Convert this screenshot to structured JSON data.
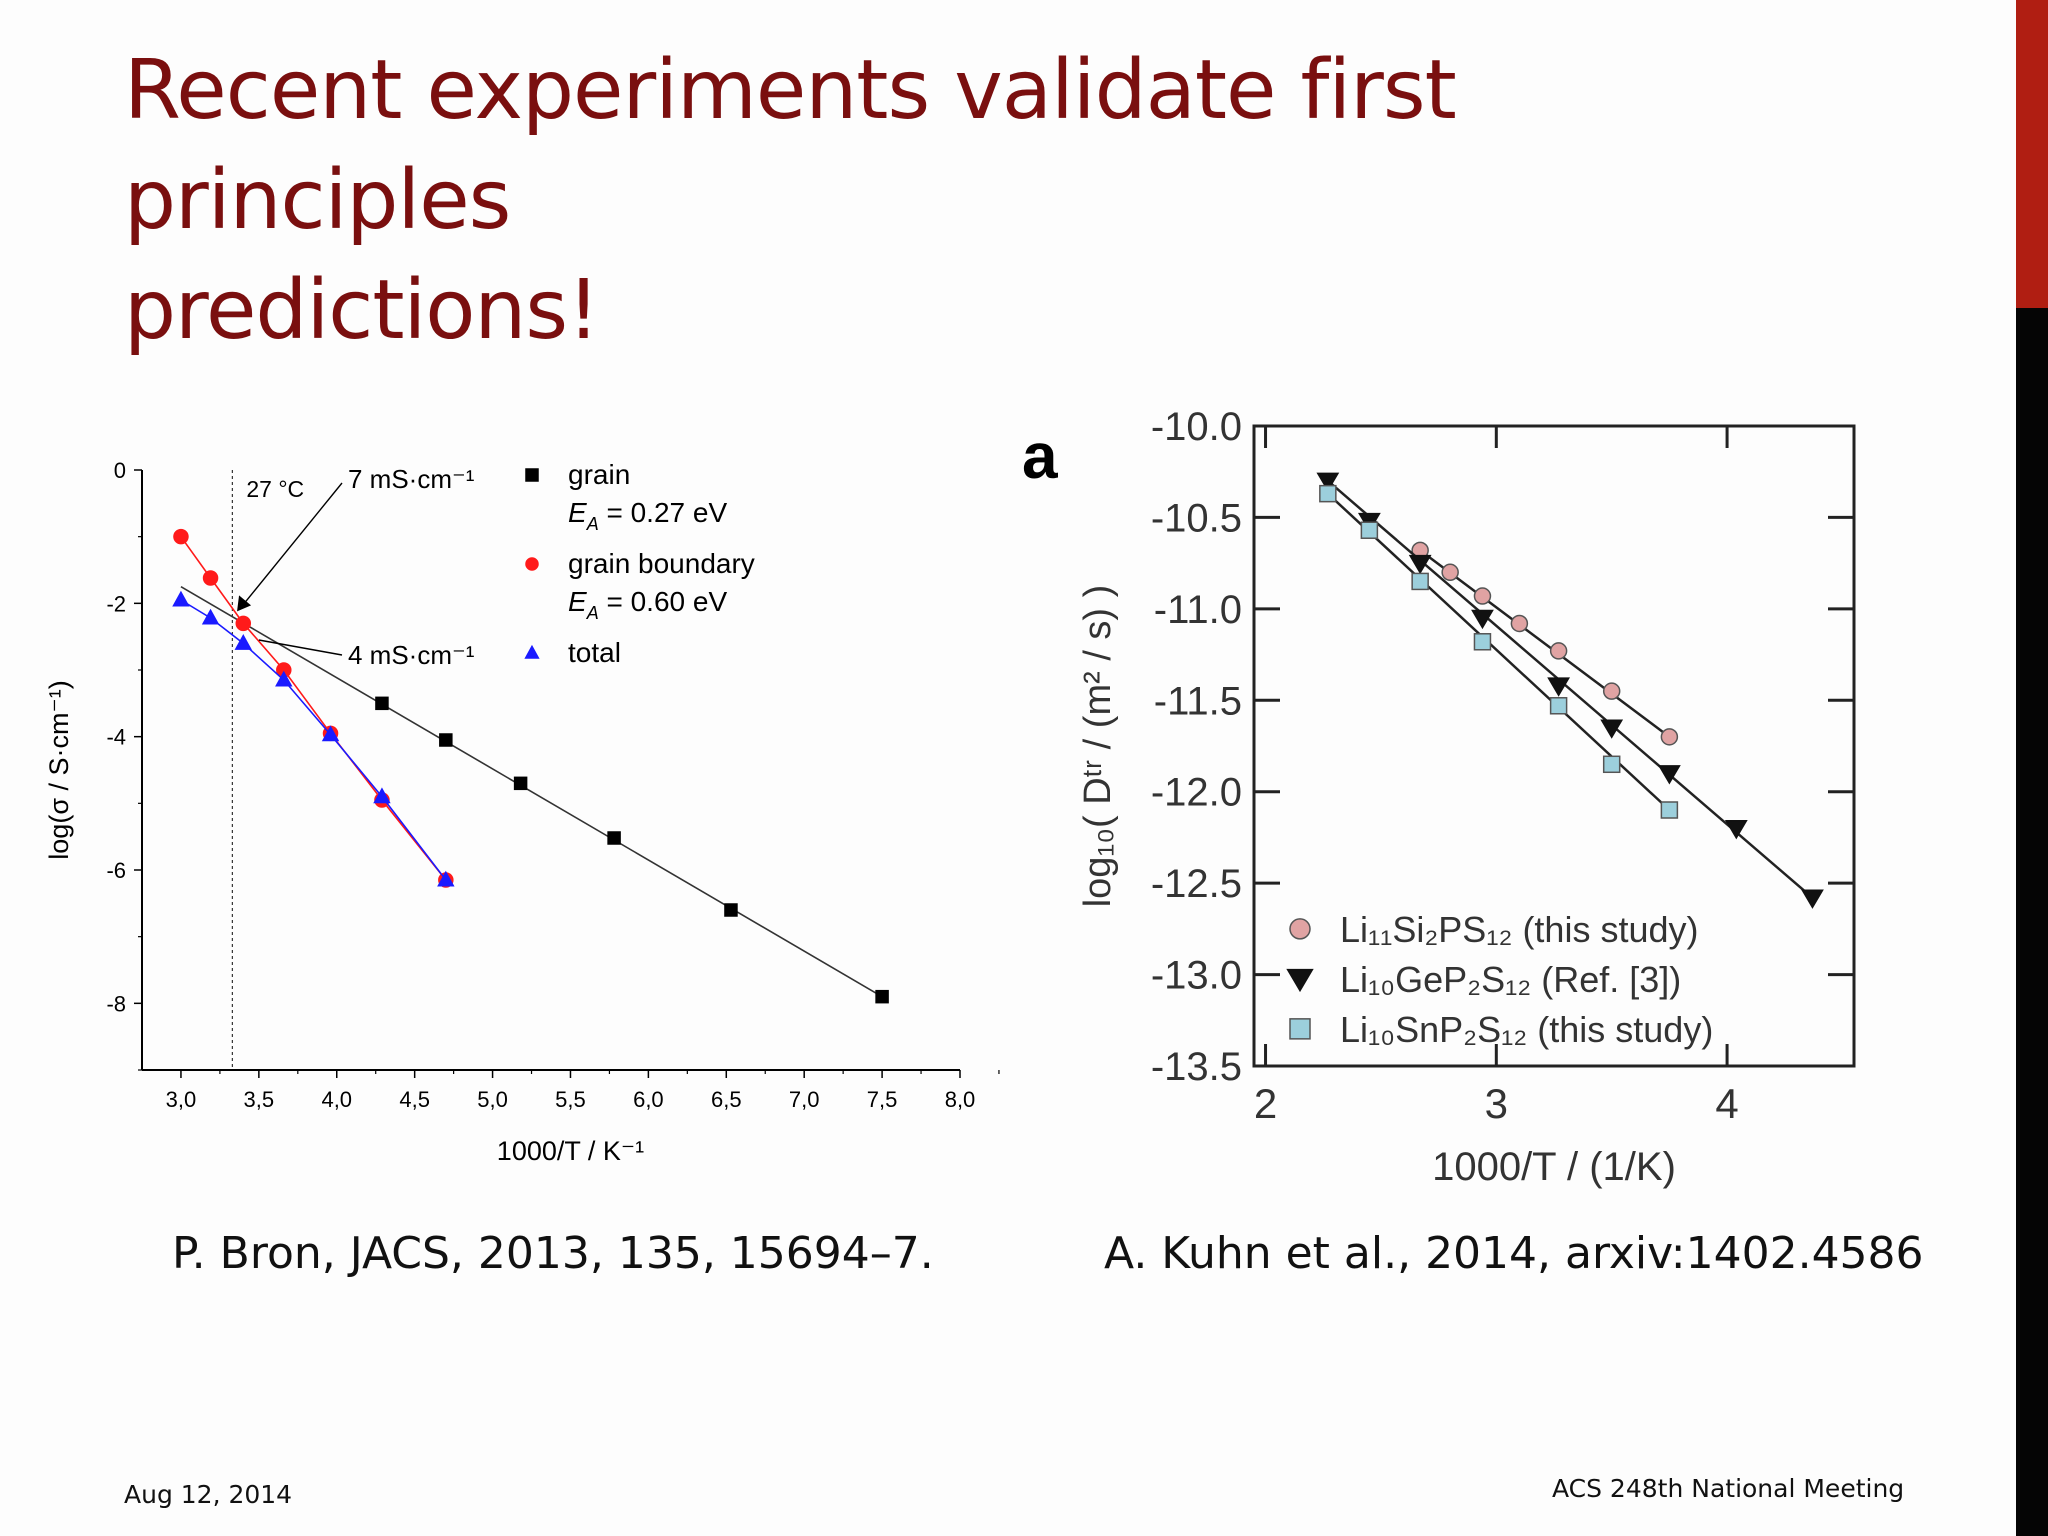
{
  "slide": {
    "title_line1": "Recent experiments validate first principles",
    "title_line2": "predictions!",
    "citation_left": "P. Bron, JACS, 2013, 135, 15694–7.",
    "citation_right": "A. Kuhn et al., 2014, arxiv:1402.4586",
    "footer_date": "Aug 12, 2014",
    "footer_event": "ACS 248th National Meeting",
    "accent_color": "#b01e12",
    "title_color": "#7a0f0f"
  },
  "chart_data": [
    {
      "type": "scatter",
      "xlabel": "1000/T / K⁻¹",
      "ylabel": "log(σ / S·cm⁻¹)",
      "xlim": [
        2.75,
        8.0
      ],
      "ylim": [
        -9,
        0
      ],
      "xticks": [
        "3,0",
        "3,5",
        "4,0",
        "4,5",
        "5,0",
        "5,5",
        "6,0",
        "6,5",
        "7,0",
        "7,5",
        "8,0"
      ],
      "yticks": [
        "0",
        "-2",
        "-4",
        "-6",
        "-8"
      ],
      "grid": false,
      "legend_position": "top-right",
      "vline": {
        "x": 3.33,
        "label": "27 °C"
      },
      "annotations": [
        "7 mS·cm⁻¹",
        "4 mS·cm⁻¹"
      ],
      "series": [
        {
          "name": "grain",
          "sublabel": "E_A = 0.27 eV",
          "marker": "square",
          "color": "#000000",
          "fit": {
            "x": [
              3.0,
              7.5
            ],
            "y": [
              -1.75,
              -7.9
            ]
          },
          "x": [
            4.29,
            4.7,
            5.18,
            5.78,
            6.53,
            7.5
          ],
          "y": [
            -3.5,
            -4.05,
            -4.7,
            -5.52,
            -6.6,
            -7.9
          ]
        },
        {
          "name": "grain boundary",
          "sublabel": "E_A = 0.60 eV",
          "marker": "circle",
          "color": "#ff1a1a",
          "x": [
            3.0,
            3.19,
            3.4,
            3.66,
            3.96,
            4.29,
            4.7
          ],
          "y": [
            -1.0,
            -1.62,
            -2.3,
            -3.0,
            -3.95,
            -4.95,
            -6.15
          ]
        },
        {
          "name": "total",
          "sublabel": "",
          "marker": "triangle",
          "color": "#1a1aff",
          "x": [
            3.0,
            3.19,
            3.4,
            3.66,
            3.96,
            4.29,
            4.7
          ],
          "y": [
            -1.95,
            -2.22,
            -2.6,
            -3.15,
            -3.97,
            -4.9,
            -6.15
          ]
        }
      ]
    },
    {
      "type": "scatter",
      "panel_label": "a",
      "xlabel": "1000/T / (1/K)",
      "ylabel": "log₁₀( Dᵗʳ / (m² / s) )",
      "xlim": [
        1.95,
        4.55
      ],
      "ylim": [
        -13.5,
        -10.0
      ],
      "xticks": [
        "2",
        "3",
        "4"
      ],
      "yticks": [
        "-10.0",
        "-10.5",
        "-11.0",
        "-11.5",
        "-12.0",
        "-12.5",
        "-13.0",
        "-13.5"
      ],
      "grid": false,
      "legend_position": "bottom-left",
      "series": [
        {
          "name": "Li₁₁Si₂PS₁₂ (this study)",
          "marker": "circle",
          "color": "#e0a3a3",
          "x": [
            2.67,
            2.8,
            2.94,
            3.1,
            3.27,
            3.5,
            3.75
          ],
          "y": [
            -10.68,
            -10.8,
            -10.93,
            -11.08,
            -11.23,
            -11.45,
            -11.7
          ]
        },
        {
          "name": "Li₁₀GeP₂S₁₂ (Ref. [3])",
          "marker": "triangle-down",
          "color": "#111111",
          "x": [
            2.27,
            2.45,
            2.67,
            2.94,
            3.27,
            3.5,
            3.75,
            4.04,
            4.37
          ],
          "y": [
            -10.3,
            -10.52,
            -10.75,
            -11.05,
            -11.42,
            -11.65,
            -11.9,
            -12.2,
            -12.58
          ]
        },
        {
          "name": "Li₁₀SnP₂S₁₂ (this study)",
          "marker": "square",
          "color": "#9ccfdc",
          "x": [
            2.27,
            2.45,
            2.67,
            2.94,
            3.27,
            3.5,
            3.75
          ],
          "y": [
            -10.37,
            -10.57,
            -10.85,
            -11.18,
            -11.53,
            -11.85,
            -12.1
          ]
        }
      ]
    }
  ]
}
